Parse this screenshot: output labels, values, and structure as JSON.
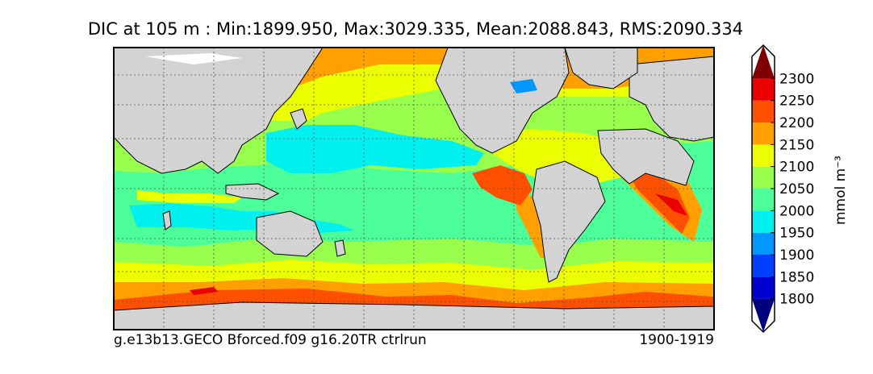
{
  "title": "DIC at 105 m : Min:1899.950, Max:3029.335, Mean:2088.843, RMS:2090.334",
  "footer": {
    "left": "g.e13b13.GECO Bforced.f09 g16.20TR ctrlrun",
    "right": "1900-1919"
  },
  "colors": {
    "land": "#d3d3d3",
    "sea_ice_gap": "#ffffff",
    "grid": "#555555"
  },
  "chart_data": {
    "type": "heatmap",
    "title": "DIC at 105 m : Min:1899.950, Max:3029.335, Mean:2088.843, RMS:2090.334",
    "variable": "DIC",
    "depth": "105 m",
    "stats": {
      "min": 1899.95,
      "max": 3029.335,
      "mean": 2088.843,
      "rms": 2090.334
    },
    "grid": true,
    "projection": "global lon-lat map",
    "colorbar": {
      "label": "mmol m⁻³",
      "placement": "right",
      "extend": "both",
      "levels": [
        1750,
        1800,
        1850,
        1900,
        1950,
        2000,
        2050,
        2100,
        2150,
        2200,
        2250,
        2300,
        2350
      ],
      "tick_labels": [
        "1800",
        "1850",
        "1900",
        "1950",
        "2000",
        "2050",
        "2100",
        "2150",
        "2200",
        "2250",
        "2300"
      ],
      "colors": [
        "#00007f",
        "#0000d0",
        "#0040ff",
        "#0098ff",
        "#00f0f0",
        "#4cff98",
        "#98ff4c",
        "#ecff00",
        "#ffa000",
        "#ff5000",
        "#ea0000",
        "#7f0000"
      ]
    }
  }
}
